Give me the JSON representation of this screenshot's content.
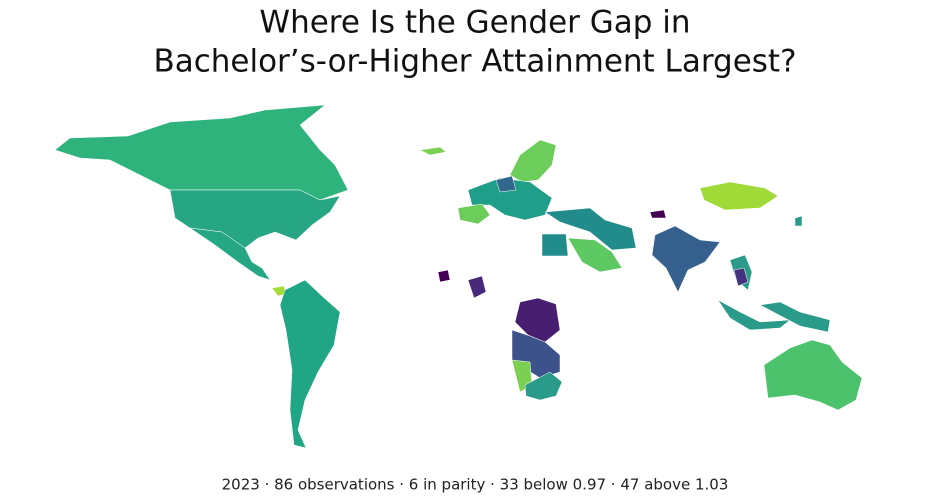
{
  "title": [
    "Where Is the Gender Gap in",
    "Bachelor’s-or-Higher Attainment Largest?"
  ],
  "caption": "2023 · 86 observations · 6 in parity · 33 below 0.97 · 47 above 1.03"
}
